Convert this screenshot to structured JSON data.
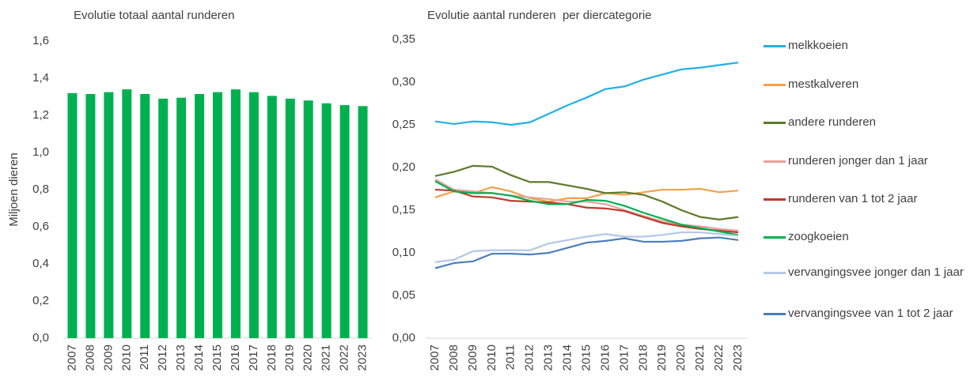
{
  "chart_data": [
    {
      "type": "bar",
      "title": "Evolutie totaal aantal runderen",
      "y_label": "Miljoen dieren",
      "categories": [
        "2007",
        "2008",
        "2009",
        "2010",
        "2011",
        "2012",
        "2013",
        "2014",
        "2015",
        "2016",
        "2017",
        "2018",
        "2019",
        "2020",
        "2021",
        "2022",
        "2023"
      ],
      "values": [
        1.32,
        1.315,
        1.325,
        1.34,
        1.315,
        1.29,
        1.295,
        1.315,
        1.325,
        1.34,
        1.325,
        1.305,
        1.29,
        1.28,
        1.265,
        1.255,
        1.25
      ],
      "color": "#00b050",
      "ylim": [
        0,
        1.6
      ],
      "yticks": [
        {
          "value": 0,
          "label": "0,0"
        },
        {
          "value": 0.2,
          "label": "0,2"
        },
        {
          "value": 0.4,
          "label": "0,4"
        },
        {
          "value": 0.6,
          "label": "0,6"
        },
        {
          "value": 0.8,
          "label": "0,8"
        },
        {
          "value": 1.0,
          "label": "1,0"
        },
        {
          "value": 1.2,
          "label": "1,2"
        },
        {
          "value": 1.4,
          "label": "1,4"
        },
        {
          "value": 1.6,
          "label": "1,6"
        }
      ]
    },
    {
      "type": "line",
      "title": "Evolutie aantal runderen  per diercategorie",
      "categories": [
        "2007",
        "2008",
        "2009",
        "2010",
        "2011",
        "2012",
        "2013",
        "2014",
        "2015",
        "2016",
        "2017",
        "2018",
        "2019",
        "2020",
        "2021",
        "2022",
        "2023"
      ],
      "ylim": [
        0,
        0.35
      ],
      "yticks": [
        {
          "value": 0,
          "label": "0,00"
        },
        {
          "value": 0.05,
          "label": "0,05"
        },
        {
          "value": 0.1,
          "label": "0,10"
        },
        {
          "value": 0.15,
          "label": "0,15"
        },
        {
          "value": 0.2,
          "label": "0,20"
        },
        {
          "value": 0.25,
          "label": "0,25"
        },
        {
          "value": 0.3,
          "label": "0,30"
        },
        {
          "value": 0.35,
          "label": "0,35"
        }
      ],
      "series": [
        {
          "name": "melkkoeien",
          "color": "#1fb0e8",
          "values": [
            0.254,
            0.251,
            0.254,
            0.253,
            0.25,
            0.253,
            0.263,
            0.273,
            0.282,
            0.292,
            0.295,
            0.303,
            0.309,
            0.315,
            0.317,
            0.32,
            0.323
          ]
        },
        {
          "name": "mestkalveren",
          "color": "#f4a04a",
          "values": [
            0.165,
            0.172,
            0.17,
            0.177,
            0.172,
            0.164,
            0.16,
            0.164,
            0.164,
            0.17,
            0.168,
            0.171,
            0.174,
            0.174,
            0.175,
            0.171,
            0.173
          ]
        },
        {
          "name": "andere runderen",
          "color": "#5e7a2a",
          "values": [
            0.19,
            0.195,
            0.202,
            0.201,
            0.191,
            0.183,
            0.183,
            0.179,
            0.175,
            0.17,
            0.171,
            0.168,
            0.16,
            0.15,
            0.142,
            0.139,
            0.142
          ]
        },
        {
          "name": "runderen jonger dan 1 jaar",
          "color": "#e6a39a",
          "values": [
            0.186,
            0.174,
            0.172,
            0.17,
            0.167,
            0.165,
            0.163,
            0.16,
            0.16,
            0.157,
            0.15,
            0.143,
            0.137,
            0.133,
            0.131,
            0.128,
            0.126
          ]
        },
        {
          "name": "runderen van 1 tot 2 jaar",
          "color": "#c0392b",
          "values": [
            0.174,
            0.173,
            0.166,
            0.165,
            0.161,
            0.16,
            0.159,
            0.157,
            0.153,
            0.152,
            0.149,
            0.142,
            0.135,
            0.131,
            0.128,
            0.126,
            0.124
          ]
        },
        {
          "name": "zoogkoeien",
          "color": "#00b050",
          "values": [
            0.184,
            0.172,
            0.17,
            0.17,
            0.167,
            0.161,
            0.157,
            0.157,
            0.162,
            0.161,
            0.155,
            0.147,
            0.14,
            0.133,
            0.129,
            0.125,
            0.121
          ]
        },
        {
          "name": "vervangingsvee jonger dan 1 jaar",
          "color": "#b4c7e7",
          "values": [
            0.089,
            0.092,
            0.102,
            0.103,
            0.103,
            0.103,
            0.111,
            0.115,
            0.119,
            0.122,
            0.119,
            0.119,
            0.121,
            0.124,
            0.124,
            0.122,
            0.12
          ]
        },
        {
          "name": "vervangingsvee van 1 tot 2 jaar",
          "color": "#4a7ebb",
          "values": [
            0.082,
            0.088,
            0.09,
            0.099,
            0.099,
            0.098,
            0.1,
            0.106,
            0.112,
            0.114,
            0.117,
            0.113,
            0.113,
            0.114,
            0.117,
            0.118,
            0.115
          ]
        }
      ]
    }
  ]
}
